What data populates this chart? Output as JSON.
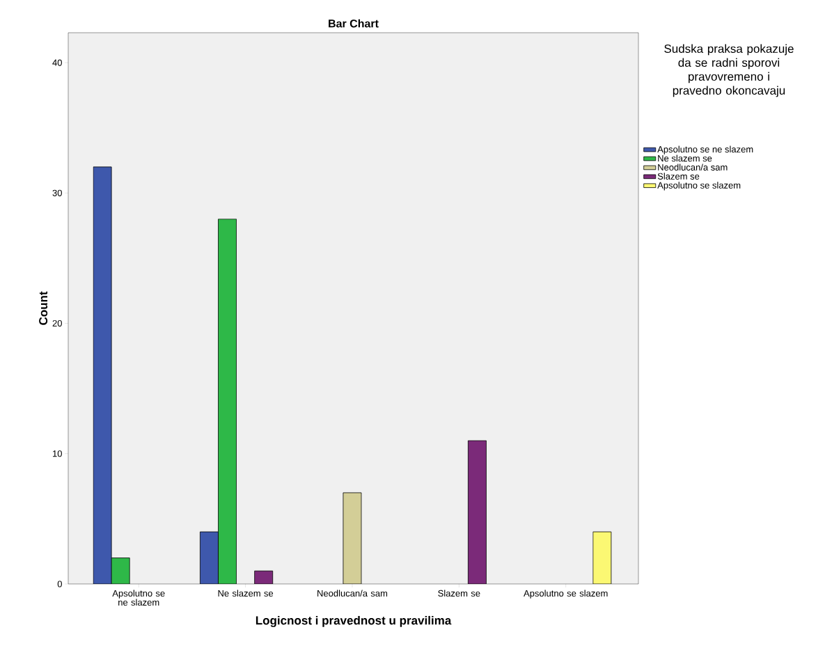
{
  "chart_data": {
    "type": "bar",
    "title": "Bar Chart",
    "xlabel": "Logicnost i pravednost u pravilima",
    "ylabel": "Count",
    "legend_title": "Sudska praksa pokazuje da se radni sporovi pravovremeno i pravedno okoncavaju",
    "categories": [
      "Apsolutno se ne slazem",
      "Ne slazem se",
      "Neodlucan/a sam",
      "Slazem se",
      "Apsolutno se slazem"
    ],
    "series": [
      {
        "name": "Apsolutno se ne slazem",
        "color": "#3e58ac",
        "values": [
          32,
          4,
          null,
          null,
          null
        ]
      },
      {
        "name": "Ne slazem se",
        "color": "#2eb848",
        "values": [
          2,
          28,
          null,
          null,
          null
        ]
      },
      {
        "name": "Neodlucan/a sam",
        "color": "#d3ce97",
        "values": [
          null,
          null,
          7,
          null,
          null
        ]
      },
      {
        "name": "Slazem se",
        "color": "#7b2a79",
        "values": [
          null,
          1,
          null,
          11,
          null
        ]
      },
      {
        "name": "Apsolutno se slazem",
        "color": "#fbf873",
        "values": [
          null,
          null,
          null,
          null,
          4
        ]
      }
    ],
    "ylim": [
      0,
      42.3
    ],
    "yticks": [
      0,
      10,
      20,
      30,
      40
    ],
    "grid": false,
    "legend": "right"
  }
}
